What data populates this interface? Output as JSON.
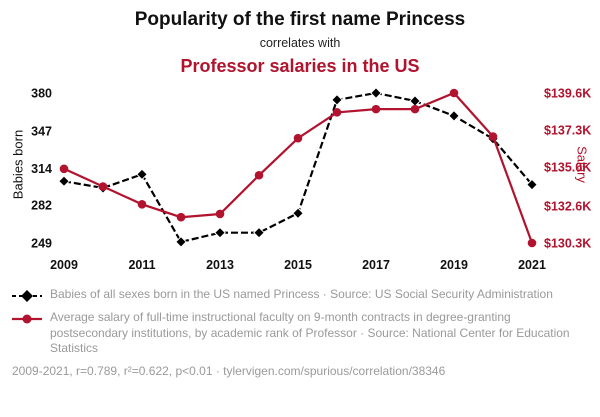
{
  "header": {
    "title": "Popularity of the first name Princess",
    "subtitle": "correlates with",
    "title2": "Professor salaries in the US"
  },
  "colors": {
    "accent_red": "#b2132e",
    "series_black": "#000000",
    "legend_gray": "#9a9a9a"
  },
  "chart_data": {
    "type": "line",
    "x": [
      2009,
      2010,
      2011,
      2012,
      2013,
      2014,
      2015,
      2016,
      2017,
      2018,
      2019,
      2020,
      2021
    ],
    "x_tick_labels": [
      "2009",
      "2011",
      "2013",
      "2015",
      "2017",
      "2019",
      "2021"
    ],
    "left_axis": {
      "label": "Babies born",
      "ticks": [
        249,
        282,
        314,
        347,
        380
      ],
      "range": [
        249,
        380
      ]
    },
    "right_axis": {
      "label": "Salary",
      "ticks": [
        "$130.3K",
        "$132.6K",
        "$135.0K",
        "$137.3K",
        "$139.6K"
      ],
      "tick_values": [
        130.3,
        132.6,
        135.0,
        137.3,
        139.6
      ],
      "range": [
        130.3,
        139.6
      ]
    },
    "grid": false,
    "legend_position": "bottom",
    "series": [
      {
        "name": "Babies of all sexes born in the US named Princess",
        "axis": "left",
        "color": "#000000",
        "style": "dashed-diamond",
        "values": [
          303,
          297,
          309,
          250,
          258,
          258,
          275,
          374,
          380,
          373,
          360,
          340,
          300
        ]
      },
      {
        "name": "Average salary of full-time instructional faculty, rank of Professor ($K)",
        "axis": "right",
        "color": "#b2132e",
        "style": "solid-circle",
        "values": [
          134.9,
          133.8,
          132.7,
          131.9,
          132.1,
          134.5,
          136.8,
          138.4,
          138.6,
          138.6,
          139.6,
          136.9,
          130.3
        ]
      }
    ]
  },
  "legend": {
    "item1": "Babies of all sexes born in the US named Princess · Source: US Social Security Administration",
    "item2": "Average salary of full-time instructional faculty on 9-month contracts in degree-granting postsecondary institutions, by academic rank of Professor · Source: National Center for Education Statistics"
  },
  "footer": {
    "text": "2009-2021, r=0.789, r²=0.622, p<0.01 · tylervigen.com/spurious/correlation/38346"
  }
}
